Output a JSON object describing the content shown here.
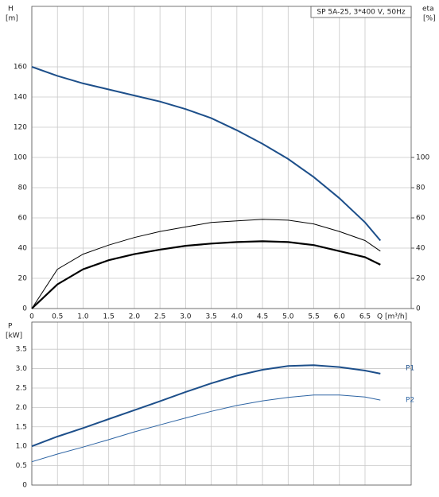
{
  "chart_data": [
    {
      "type": "line",
      "title": "SP 5A-25, 3*400 V, 50Hz",
      "y_label": "H",
      "y_unit": "[m]",
      "y2_label": "eta",
      "y2_unit": "[%]",
      "x_label": "Q [m³/h]",
      "x": [
        0,
        0.5,
        1.0,
        1.5,
        2.0,
        2.5,
        3.0,
        3.5,
        4.0,
        4.5,
        5.0,
        5.5,
        6.0,
        6.5,
        6.8
      ],
      "xlim": [
        0,
        7.4
      ],
      "xticks": [
        0,
        0.5,
        {
          "value": 1,
          "label": "1.0"
        },
        1.5,
        {
          "value": 2,
          "label": "2.0"
        },
        2.5,
        {
          "value": 3,
          "label": "3.0"
        },
        3.5,
        {
          "value": 4,
          "label": "4.0"
        },
        4.5,
        {
          "value": 5,
          "label": "5.0"
        },
        5.5,
        {
          "value": 6,
          "label": "6.0"
        },
        6.5
      ],
      "ylim": [
        0,
        200
      ],
      "yticks": [
        0,
        20,
        40,
        60,
        80,
        100,
        120,
        140,
        160
      ],
      "y2lim": [
        0,
        200
      ],
      "y2ticks": [
        0,
        20,
        40,
        60,
        80,
        100
      ],
      "grid": true,
      "series": [
        {
          "color": "#1d4f8a",
          "values": [
            160,
            154,
            149,
            145,
            141,
            137,
            132,
            126,
            118,
            109,
            99,
            87,
            73,
            57,
            45
          ]
        },
        {
          "color": "#000000",
          "axis": "y2",
          "values": [
            0,
            26,
            36,
            42,
            47,
            51,
            54,
            57,
            58,
            59,
            58.5,
            56,
            51,
            45,
            38
          ]
        },
        {
          "color": "#000000",
          "axis": "y2",
          "values": [
            0,
            16,
            26,
            32,
            36,
            39,
            41.5,
            43,
            44,
            44.5,
            44,
            42,
            38,
            34,
            29
          ]
        }
      ]
    },
    {
      "type": "line",
      "y_label": "P",
      "y_unit": "[kW]",
      "x": [
        0,
        0.5,
        1.0,
        1.5,
        2.0,
        2.5,
        3.0,
        3.5,
        4.0,
        4.5,
        5.0,
        5.5,
        6.0,
        6.5,
        6.8
      ],
      "xlim": [
        0,
        7.4
      ],
      "xticks": [
        0,
        0.5,
        1,
        1.5,
        2,
        2.5,
        3,
        3.5,
        4,
        4.5,
        5,
        5.5,
        6,
        6.5
      ],
      "ylim": [
        0,
        4.2
      ],
      "yticks": [
        0,
        0.5,
        {
          "value": 1,
          "label": "1.0"
        },
        1.5,
        {
          "value": 2,
          "label": "2.0"
        },
        2.5,
        {
          "value": 3,
          "label": "3.0"
        },
        3.5
      ],
      "grid": true,
      "series": [
        {
          "name": "P1",
          "color": "#1d4f8a",
          "values": [
            1.0,
            1.25,
            1.47,
            1.7,
            1.93,
            2.16,
            2.4,
            2.62,
            2.82,
            2.97,
            3.07,
            3.09,
            3.04,
            2.95,
            2.87
          ]
        },
        {
          "name": "P2",
          "color": "#2d64a3",
          "values": [
            0.6,
            0.8,
            0.98,
            1.17,
            1.37,
            1.55,
            1.73,
            1.9,
            2.05,
            2.17,
            2.26,
            2.32,
            2.32,
            2.27,
            2.19
          ]
        }
      ]
    }
  ]
}
